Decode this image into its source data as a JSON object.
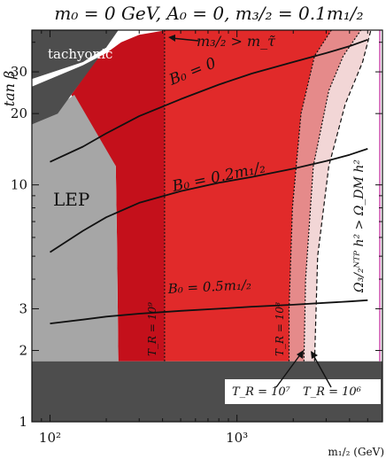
{
  "chart_data": {
    "type": "area",
    "title": "m₀ = 0 GeV, A₀ = 0, m₃/₂ = 0.1m₁/₂",
    "xlabel": "m₁/₂ (GeV)",
    "ylabel": "tan β",
    "xscale": "log",
    "yscale": "log",
    "xlim": [
      80,
      6000
    ],
    "ylim": [
      1,
      45
    ],
    "x_ticks": [
      {
        "value": 100,
        "label": "10²"
      },
      {
        "value": 1000,
        "label": "10³"
      }
    ],
    "y_ticks": [
      {
        "value": 1,
        "label": "1"
      },
      {
        "value": 2,
        "label": "2"
      },
      {
        "value": 3,
        "label": "3"
      },
      {
        "value": 10,
        "label": "10"
      },
      {
        "value": 20,
        "label": "20"
      },
      {
        "value": 30,
        "label": "30"
      }
    ],
    "grid": false,
    "legend": "none",
    "colors": {
      "excluded": "#4d4d4d",
      "lep": "#a6a6a6",
      "tr_1e9": "#c4101b",
      "tr_1e8": "#e12a2a",
      "tr_1e7": "#e58a8a",
      "tr_1e6": "#f2d6d6",
      "boundary": "#d14fb0",
      "curve": "#111111"
    },
    "regions": [
      {
        "id": "tachyonic",
        "label": "tachyonic",
        "boundary": [
          [
            80,
            18
          ],
          [
            110,
            20
          ],
          [
            130,
            24
          ],
          [
            150,
            28
          ],
          [
            175,
            33
          ],
          [
            200,
            38
          ],
          [
            230,
            45
          ],
          [
            80,
            45
          ]
        ]
      },
      {
        "id": "low-tanb",
        "label": "",
        "boundary": [
          [
            80,
            1
          ],
          [
            6000,
            1
          ],
          [
            6000,
            1.8
          ],
          [
            80,
            1.8
          ]
        ]
      },
      {
        "id": "lep",
        "label": "LEP",
        "boundary": [
          [
            80,
            1.8
          ],
          [
            232,
            1.8
          ],
          [
            228,
            6
          ],
          [
            225,
            12
          ],
          [
            135,
            24
          ],
          [
            80,
            18
          ]
        ]
      },
      {
        "id": "tr-1e9",
        "label": "T_R = 10⁹",
        "boundary": [
          [
            232,
            1.8
          ],
          [
            410,
            1.8
          ],
          [
            410,
            45
          ],
          [
            230,
            45
          ],
          [
            130,
            24
          ],
          [
            225,
            12
          ],
          [
            228,
            6
          ]
        ]
      },
      {
        "id": "tr-1e8",
        "label": "T_R = 10⁸",
        "boundary": [
          [
            410,
            1.8
          ],
          [
            1900,
            1.8
          ],
          [
            1900,
            3
          ],
          [
            1980,
            8
          ],
          [
            2200,
            20
          ],
          [
            2600,
            35
          ],
          [
            3200,
            45
          ],
          [
            410,
            45
          ]
        ]
      },
      {
        "id": "tr-1e7",
        "label": "T_R = 10⁷",
        "boundary": [
          [
            1900,
            1.8
          ],
          [
            2280,
            1.8
          ],
          [
            2330,
            4
          ],
          [
            2560,
            12
          ],
          [
            3100,
            25
          ],
          [
            3700,
            35
          ],
          [
            4600,
            45
          ],
          [
            3200,
            45
          ],
          [
            2600,
            35
          ],
          [
            2200,
            20
          ],
          [
            1980,
            8
          ],
          [
            1900,
            3
          ]
        ]
      },
      {
        "id": "tr-1e6",
        "label": "T_R = 10⁶",
        "boundary": [
          [
            2280,
            1.8
          ],
          [
            2600,
            1.8
          ],
          [
            2700,
            5
          ],
          [
            3100,
            12
          ],
          [
            3800,
            22
          ],
          [
            4700,
            33
          ],
          [
            5200,
            45
          ],
          [
            4600,
            45
          ],
          [
            3700,
            35
          ],
          [
            3100,
            25
          ],
          [
            2560,
            12
          ],
          [
            2330,
            4
          ]
        ]
      }
    ],
    "gravitino_lsp_line": {
      "label": "m₃/₂ > m_τ̃",
      "x": [
        80,
        150,
        200,
        240,
        300,
        420
      ],
      "y": [
        26,
        32,
        36,
        40,
        43,
        45
      ]
    },
    "series": [
      {
        "name": "B₀ = 0",
        "x": [
          100,
          150,
          200,
          300,
          500,
          800,
          1200,
          2000,
          3000,
          4000,
          5000
        ],
        "y": [
          12.5,
          14.5,
          16.5,
          19.5,
          23,
          26.5,
          29.5,
          33,
          36,
          38.5,
          41
        ]
      },
      {
        "name": "B₀ = 0.2m₁/₂",
        "x": [
          100,
          150,
          200,
          300,
          500,
          800,
          1200,
          2000,
          3000,
          4000,
          5000
        ],
        "y": [
          5.2,
          6.4,
          7.3,
          8.4,
          9.4,
          10.2,
          10.8,
          11.7,
          12.6,
          13.4,
          14.2
        ]
      },
      {
        "name": "B₀ = 0.5m₁/₂",
        "x": [
          100,
          150,
          200,
          300,
          500,
          800,
          1200,
          2000,
          3000,
          4000,
          5000
        ],
        "y": [
          2.6,
          2.7,
          2.78,
          2.86,
          2.94,
          3.0,
          3.06,
          3.12,
          3.18,
          3.22,
          3.26
        ]
      }
    ],
    "annotations": [
      {
        "text": "Ω₃/₂ᴺᵀᴾ h² > Ω_DM h²",
        "kind": "vertical"
      },
      {
        "text": "T_R = 10⁷",
        "kind": "arrow"
      },
      {
        "text": "T_R = 10⁶",
        "kind": "arrow"
      }
    ]
  }
}
